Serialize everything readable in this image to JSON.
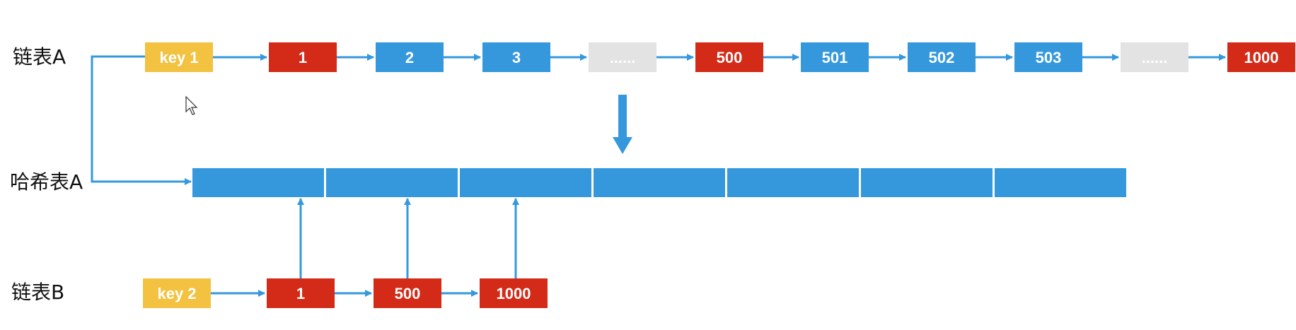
{
  "colors": {
    "key": "#f2c240",
    "red": "#d42a18",
    "blue": "#3598dc",
    "gray": "#e3e3e3",
    "arrow": "#3598dc",
    "label": "#111111"
  },
  "list_a": {
    "label": "链表A",
    "nodes": [
      {
        "text": "key 1",
        "color": "key"
      },
      {
        "text": "1",
        "color": "red"
      },
      {
        "text": "2",
        "color": "blue"
      },
      {
        "text": "3",
        "color": "blue"
      },
      {
        "text": "......",
        "color": "gray"
      },
      {
        "text": "500",
        "color": "red"
      },
      {
        "text": "501",
        "color": "blue"
      },
      {
        "text": "502",
        "color": "blue"
      },
      {
        "text": "503",
        "color": "blue"
      },
      {
        "text": "......",
        "color": "gray"
      },
      {
        "text": "1000",
        "color": "red"
      }
    ]
  },
  "hash_table": {
    "label": "哈希表A",
    "cell_count": 7
  },
  "list_b": {
    "label": "链表B",
    "nodes": [
      {
        "text": "key 2",
        "color": "key"
      },
      {
        "text": "1",
        "color": "red"
      },
      {
        "text": "500",
        "color": "red"
      },
      {
        "text": "1000",
        "color": "red"
      }
    ]
  }
}
